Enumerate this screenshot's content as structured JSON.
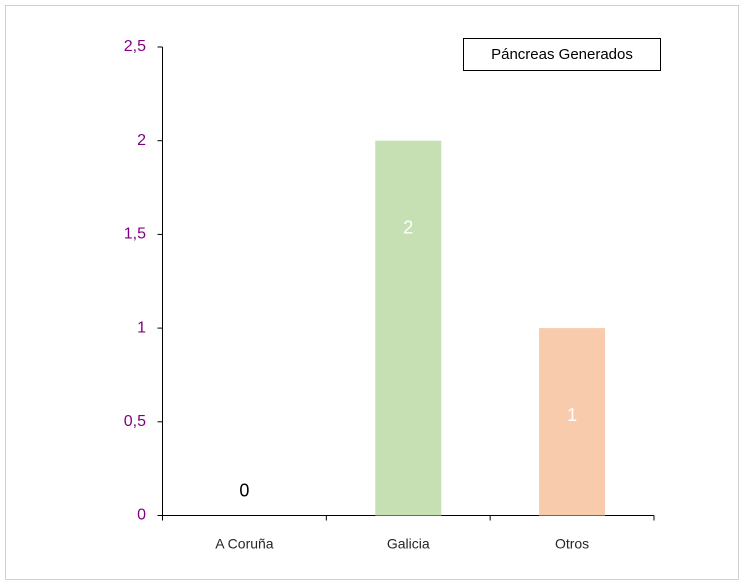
{
  "chart_data": {
    "type": "bar",
    "title": "Páncreas Generados",
    "categories": [
      "A Coruña",
      "Galicia",
      "Otros"
    ],
    "values": [
      0,
      2,
      1
    ],
    "colors": [
      "#9dc3e6",
      "#c6e0b4",
      "#f8cbad"
    ],
    "ylim": [
      0,
      2.5
    ],
    "yticks": [
      0,
      {
        "value": 0.5,
        "label": "0,5"
      },
      1,
      {
        "value": 1.5,
        "label": "1,5"
      },
      2,
      {
        "value": 2.5,
        "label": "2,5"
      }
    ],
    "grid": false
  }
}
